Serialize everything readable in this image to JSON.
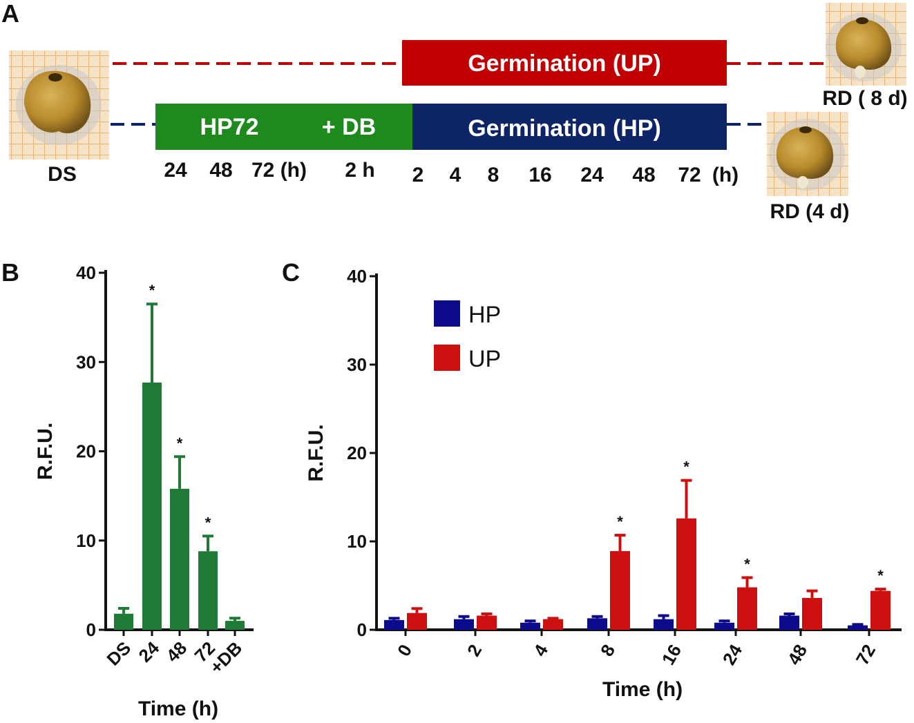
{
  "panelA": {
    "letter": "A",
    "up_bar_label": "Germination (UP)",
    "hp72_label": "HP72",
    "db_label": "+ DB",
    "hp_bar_label": "Germination (HP)",
    "seed_ds_label": "DS",
    "seed_rd8_label": "RD ( 8 d)",
    "seed_rd4_label": "RD (4 d)",
    "hp72_timepoints": [
      "24",
      "48",
      "72 (h)"
    ],
    "db_timepoint": "2 h",
    "germ_timepoints": [
      "2",
      "4",
      "8",
      "16",
      "24",
      "48",
      "72",
      "(h)"
    ],
    "colors": {
      "up": "#c00000",
      "hp72": "#1e8a1e",
      "hp": "#0d2466"
    }
  },
  "chart_data": [
    {
      "panel": "B",
      "type": "bar",
      "title": "",
      "xlabel": "Time (h)",
      "ylabel": "R.F.U.",
      "ylim": [
        0,
        40
      ],
      "yticks": [
        "0",
        "10",
        "20",
        "30",
        "40"
      ],
      "categories": [
        "DS",
        "24",
        "48",
        "72",
        "+DB"
      ],
      "series": [
        {
          "name": "HP72",
          "color": "#1f7a35",
          "values": [
            1.8,
            27.7,
            15.8,
            8.8,
            1.0
          ],
          "errors": [
            0.6,
            8.8,
            3.6,
            1.7,
            0.3
          ],
          "significant": [
            false,
            true,
            true,
            true,
            false
          ]
        }
      ],
      "significance_marker": "*"
    },
    {
      "panel": "C",
      "type": "bar",
      "title": "",
      "xlabel": "Time (h)",
      "ylabel": "R.F.U.",
      "ylim": [
        0,
        40
      ],
      "yticks": [
        "0",
        "10",
        "20",
        "30",
        "40"
      ],
      "categories": [
        "0",
        "2",
        "4",
        "8",
        "16",
        "24",
        "48",
        "72"
      ],
      "legend": "top-left",
      "series": [
        {
          "name": "HP",
          "color": "#0b0b8c",
          "values": [
            1.1,
            1.2,
            0.8,
            1.3,
            1.2,
            0.8,
            1.6,
            0.5
          ],
          "errors": [
            0.2,
            0.3,
            0.2,
            0.2,
            0.4,
            0.2,
            0.2,
            0.1
          ],
          "significant": [
            false,
            false,
            false,
            false,
            false,
            false,
            false,
            false
          ]
        },
        {
          "name": "UP",
          "color": "#cc0f0f",
          "values": [
            1.9,
            1.6,
            1.2,
            8.9,
            12.6,
            4.8,
            3.6,
            4.4
          ],
          "errors": [
            0.5,
            0.2,
            0.1,
            1.8,
            4.3,
            1.1,
            0.8,
            0.2
          ],
          "significant": [
            false,
            false,
            false,
            true,
            true,
            true,
            false,
            true
          ]
        }
      ],
      "significance_marker": "*"
    }
  ]
}
